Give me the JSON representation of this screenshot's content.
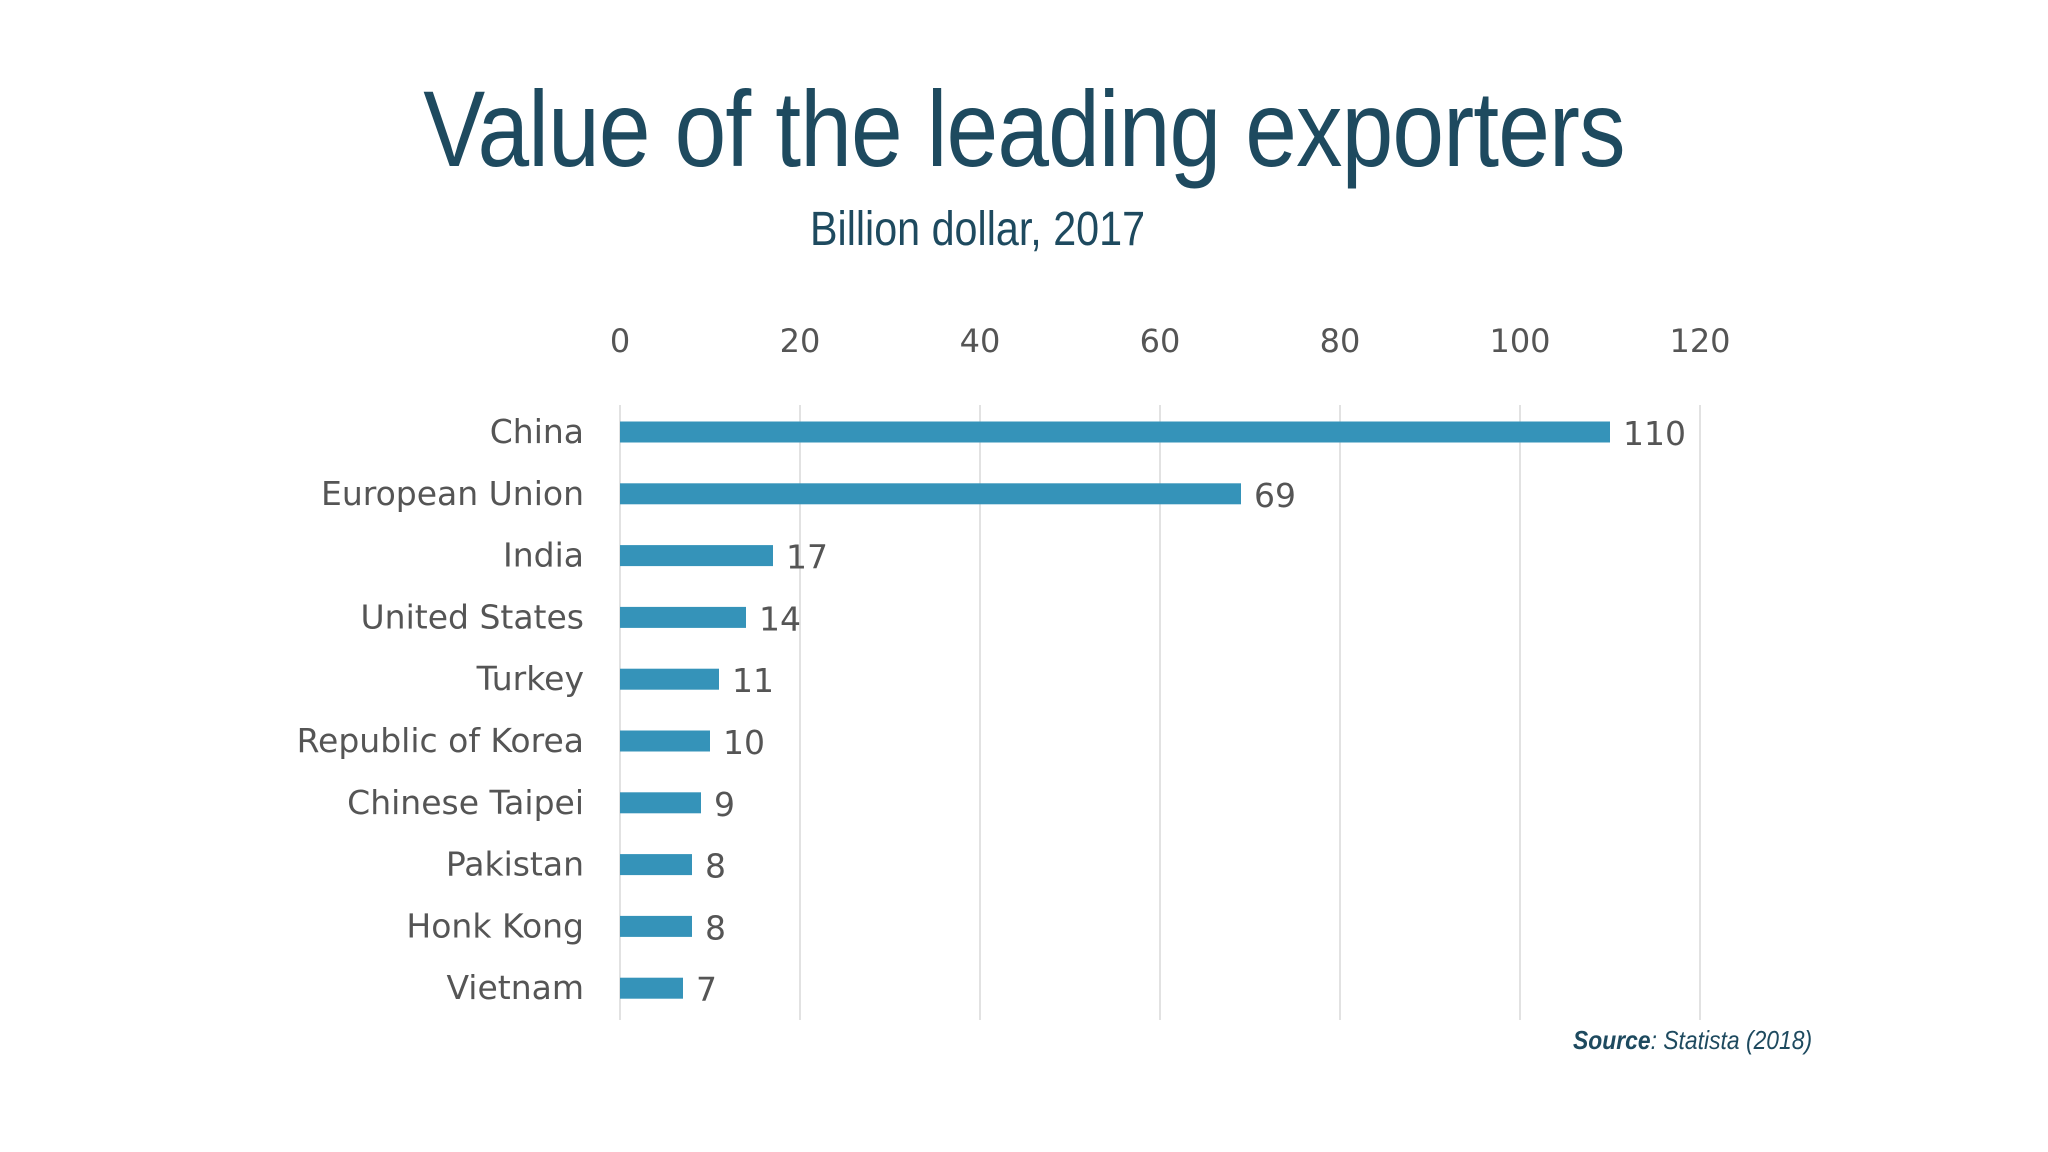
{
  "slide": {
    "title": "Value of the leading exporters",
    "subtitle": "Billion dollar, 2017",
    "source_label": "Source",
    "source_text": ": Statista (2018)"
  },
  "colors": {
    "title": "#1e4a5f",
    "bar": "#3593b9",
    "grid": "#d9d9d9",
    "label": "#555555"
  },
  "chart_data": {
    "type": "bar",
    "orientation": "horizontal",
    "title": "Value of the leading exporters",
    "subtitle": "Billion dollar, 2017",
    "xlabel": "",
    "ylabel": "",
    "categories": [
      "China",
      "European Union",
      "India",
      "United States",
      "Turkey",
      "Republic of Korea",
      "Chinese Taipei",
      "Pakistan",
      "Honk Kong",
      "Vietnam"
    ],
    "values": [
      110,
      69,
      17,
      14,
      11,
      10,
      9,
      8,
      8,
      7
    ],
    "xlim": [
      0,
      120
    ],
    "xticks": [
      0,
      20,
      40,
      60,
      80,
      100,
      120
    ],
    "axis_position": "top",
    "grid": "vertical",
    "legend": "none",
    "data_labels": true
  }
}
